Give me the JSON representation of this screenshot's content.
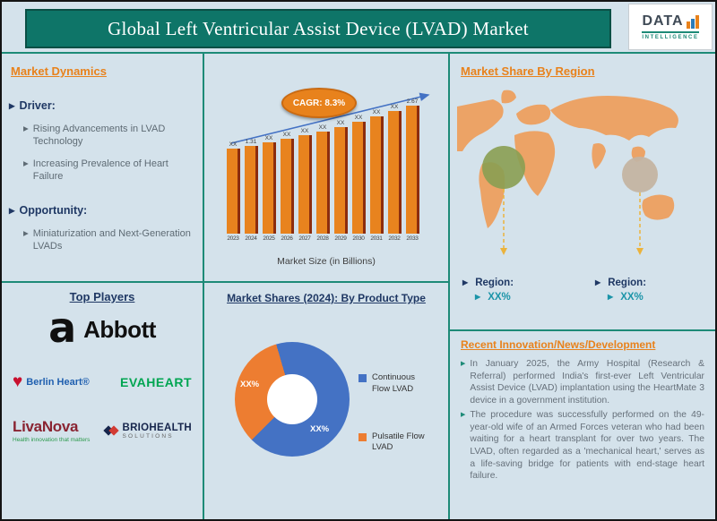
{
  "header": {
    "title": "Global Left Ventricular Assist Device (LVAD) Market",
    "logo": {
      "name": "DATA",
      "subtitle": "INTELLIGENCE"
    }
  },
  "market_dynamics": {
    "heading": "Market Dynamics",
    "driver_label": "Driver:",
    "drivers": [
      "Rising Advancements in LVAD Technology",
      "Increasing Prevalence of Heart Failure"
    ],
    "opportunity_label": "Opportunity:",
    "opportunities": [
      "Miniaturization and Next-Generation LVADs"
    ]
  },
  "chart_data": [
    {
      "type": "bar",
      "title": "Market Size (in Billions)",
      "categories": [
        "2023",
        "2024",
        "2025",
        "2026",
        "2027",
        "2028",
        "2029",
        "2030",
        "2031",
        "2032",
        "2033"
      ],
      "values": [
        1.21,
        1.31,
        1.42,
        1.54,
        1.66,
        1.8,
        1.95,
        2.11,
        2.29,
        2.48,
        2.67
      ],
      "labels": [
        "XX",
        "1.31",
        "XX",
        "XX",
        "XX",
        "XX",
        "XX",
        "XX",
        "XX",
        "XX",
        "2.67"
      ],
      "annotation": "CAGR: 8.3%",
      "xlabel": "",
      "ylabel": "",
      "ylim": [
        0,
        2.8
      ],
      "grid": false,
      "bar_color": "#E8831E",
      "bar_shadow_color": "#8C2D0E",
      "trend_color": "#4472C4"
    },
    {
      "type": "pie",
      "donut": true,
      "title": "Market Shares (2024): By Product Type",
      "legend_position": "right",
      "slices": [
        {
          "label": "Continuous Flow LVAD",
          "value": 67,
          "display": "XX%",
          "color": "#4472C4"
        },
        {
          "label": "Pulsatile Flow LVAD",
          "value": 33,
          "display": "XX%",
          "color": "#ED7D31"
        }
      ]
    }
  ],
  "region_share": {
    "heading": "Market Share By Region",
    "callouts": [
      {
        "label": "Region:",
        "value": "XX%"
      },
      {
        "label": "Region:",
        "value": "XX%"
      }
    ]
  },
  "top_players": {
    "heading": "Top Players",
    "abbott": "Abbott",
    "berlin_heart": "Berlin Heart®",
    "evaheart": "EVAHEART",
    "livanova": "LivaNova",
    "livanova_tagline": "Health innovation that matters",
    "briohealth": "BRIOHEALTH",
    "briohealth_sub": "SOLUTIONS"
  },
  "news": {
    "heading": "Recent Innovation/News/Development",
    "items": [
      "In January 2025, the Army Hospital (Research & Referral) performed India's first-ever Left Ventricular Assist Device (LVAD) implantation using the HeartMate 3 device in a government institution.",
      "The procedure was successfully performed on the 49-year-old wife of an Armed Forces veteran who had been waiting for a heart transplant for over two years. The LVAD, often regarded as a 'mechanical heart,' serves as a life-saving bridge for patients with end-stage heart failure."
    ]
  },
  "colors": {
    "teal": "#0E7568",
    "divider_teal": "#1D8A77",
    "orange": "#E8821C",
    "navy": "#1F3864",
    "map_land": "#ECA366",
    "map_circle_green": "#8A9E52",
    "map_circle_tan": "#C4B4A2"
  }
}
